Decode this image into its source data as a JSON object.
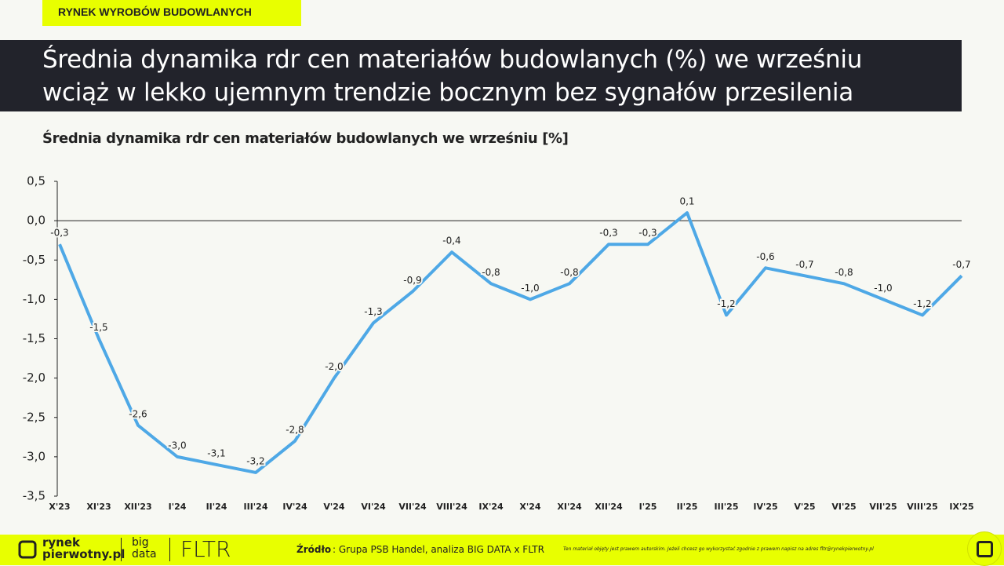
{
  "header": {
    "tag": "RYNEK WYROBÓW BUDOWLANYCH",
    "title_lines": [
      "Średnia dynamika rdr cen materiałów budowlanych (%) we wrześniu",
      "wciąż w lekko ujemnym trendzie bocznym bez sygnałów przesilenia"
    ]
  },
  "chart_data": {
    "type": "line",
    "title": "Średnia dynamika rdr cen materiałów budowlanych we wrześniu [%]",
    "categories": [
      "X'23",
      "XI'23",
      "XII'23",
      "I'24",
      "II'24",
      "III'24",
      "IV'24",
      "V'24",
      "VI'24",
      "VII'24",
      "VIII'24",
      "IX'24",
      "X'24",
      "XI'24",
      "XII'24",
      "I'25",
      "II'25",
      "III'25",
      "IV'25",
      "V'25",
      "VI'25",
      "VII'25",
      "VIII'25",
      "IX'25"
    ],
    "values": [
      -0.3,
      -1.5,
      -2.6,
      -3.0,
      -3.1,
      -3.2,
      -2.8,
      -2.0,
      -1.3,
      -0.9,
      -0.4,
      -0.8,
      -1.0,
      -0.8,
      -0.3,
      -0.3,
      0.1,
      -1.2,
      -0.6,
      -0.7,
      -0.8,
      -1.0,
      -1.2,
      -0.7
    ],
    "value_labels": [
      "-0,3",
      "-1,5",
      "-2,6",
      "-3,0",
      "-3,1",
      "-3,2",
      "-2,8",
      "-2,0",
      "-1,3",
      "-0,9",
      "-0,4",
      "-0,8",
      "-1,0",
      "-0,8",
      "-0,3",
      "-0,3",
      "0,1",
      "-1,2",
      "-0,6",
      "-0,7",
      "-0,8",
      "-1,0",
      "-1,2",
      "-0,7"
    ],
    "color": "#4ea8e6",
    "ylim": [
      -3.5,
      0.5
    ],
    "yticks": [
      {
        "value": 0.5,
        "label": "0,5"
      },
      {
        "value": 0,
        "label": "0,0"
      },
      {
        "value": -0.5,
        "label": "-0,5"
      },
      {
        "value": -1,
        "label": "-1,0"
      },
      {
        "value": -1.5,
        "label": "-1,5"
      },
      {
        "value": -2,
        "label": "-2,0"
      },
      {
        "value": -2.5,
        "label": "-2,5"
      },
      {
        "value": -3,
        "label": "-3,0"
      },
      {
        "value": -3.5,
        "label": "-3,5"
      }
    ]
  },
  "footer": {
    "logo_top": "rynek",
    "logo_bottom": "pierwotny.pl",
    "big_top": "big",
    "big_bottom": "data",
    "fltr": "FLTR",
    "source_label": "Źródło",
    "source": ": Grupa PSB Handel, analiza BIG DATA x FLTR",
    "copyright": "Ten materiał objęty jest prawem autorskim. Jeżeli chcesz go wykorzystać zgodnie z prawem napisz na adres fltr@rynekpierwotny.pl"
  }
}
